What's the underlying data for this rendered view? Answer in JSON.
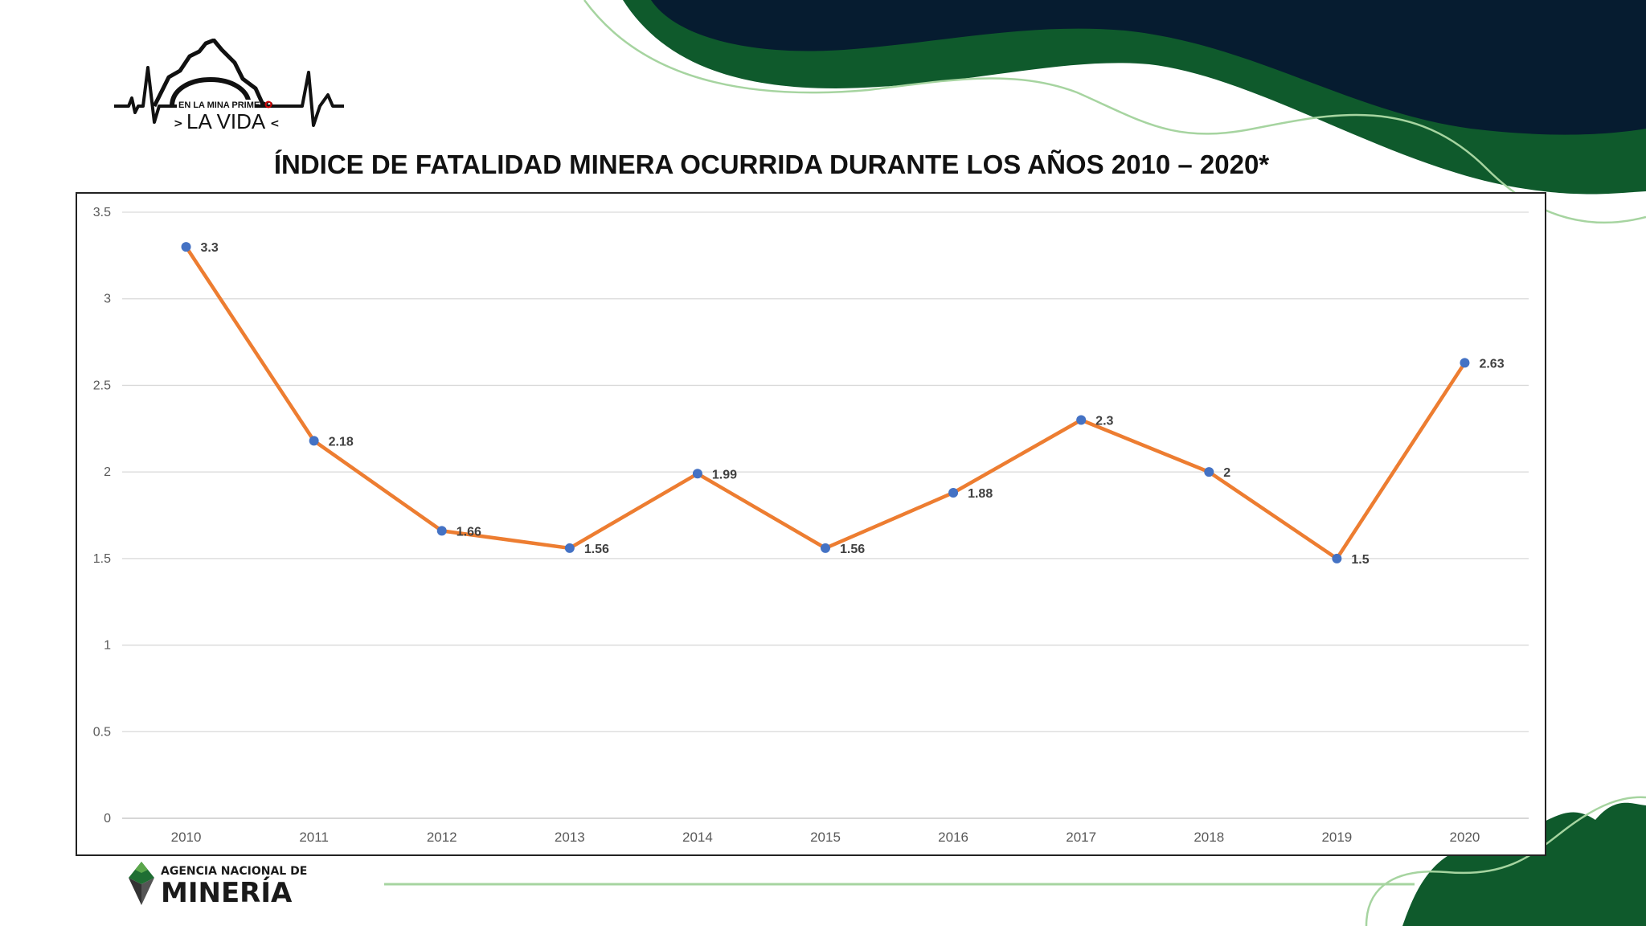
{
  "slide": {
    "title": "ÍNDICE DE FATALIDAD MINERA OCURRIDA DURANTE LOS AÑOS 2010 – 2020*",
    "logo_top": {
      "small_text": "EN LA MINA PRIMERO",
      "big_text": "LA VIDA"
    },
    "logo_bottom": {
      "line1": "AGENCIA NACIONAL DE",
      "line2": "MINERÍA"
    }
  },
  "colors": {
    "dark_navy": "#061c30",
    "dark_green": "#0f5a2c",
    "light_green_line": "#a6d4a0",
    "series_line": "#ed7d31",
    "marker": "#4472c4",
    "grid": "#d9d9d9",
    "tick_text": "#595959",
    "label_text": "#404040"
  },
  "chart_data": {
    "type": "line",
    "title": "ÍNDICE DE FATALIDAD MINERA OCURRIDA DURANTE LOS AÑOS 2010 – 2020*",
    "categories": [
      "2010",
      "2011",
      "2012",
      "2013",
      "2014",
      "2015",
      "2016",
      "2017",
      "2018",
      "2019",
      "2020"
    ],
    "series": [
      {
        "values": [
          3.3,
          2.18,
          1.66,
          1.56,
          1.99,
          1.56,
          1.88,
          2.3,
          2,
          1.5,
          2.63
        ],
        "labels": [
          "3.3",
          "2.18",
          "1.66",
          "1.56",
          "1.99",
          "1.56",
          "1.88",
          "2.3",
          "2",
          "1.5",
          "2.63"
        ]
      }
    ],
    "yticks": [
      "0",
      "0.5",
      "1",
      "1.5",
      "2",
      "2.5",
      "3",
      "3.5"
    ],
    "ylim": [
      0,
      3.5
    ],
    "grid": true,
    "legend": "none"
  }
}
